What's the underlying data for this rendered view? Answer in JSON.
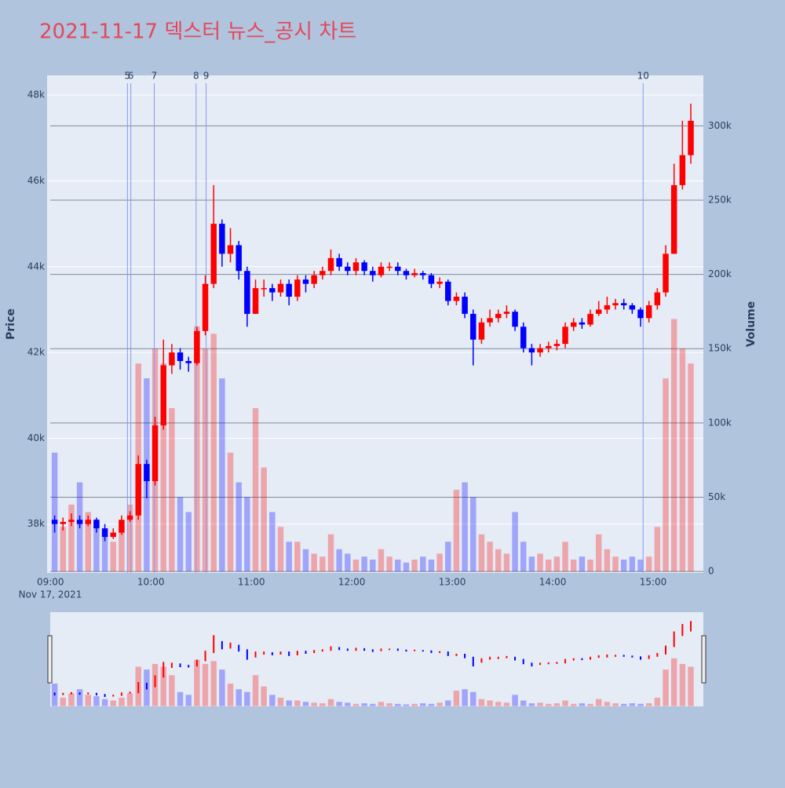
{
  "chart_data": {
    "type": "candlestick",
    "title": "2021-11-17 덱스터 뉴스_공시 차트",
    "y_label": "Price",
    "y2_label": "Volume",
    "x_date_label": "Nov 17, 2021",
    "increasing_color": "#ff0000",
    "decreasing_color": "#0000ff",
    "xlim": [
      "08:58",
      "15:30"
    ],
    "xticks": [
      "09:00",
      "10:00",
      "11:00",
      "12:00",
      "13:00",
      "14:00",
      "15:00"
    ],
    "ylim": [
      36860,
      48460
    ],
    "yticks": [
      {
        "value": 38000,
        "label": "38k"
      },
      {
        "value": 40000,
        "label": "40k"
      },
      {
        "value": 42000,
        "label": "42k"
      },
      {
        "value": 44000,
        "label": "44k"
      },
      {
        "value": 46000,
        "label": "46k"
      },
      {
        "value": 48000,
        "label": "48k"
      }
    ],
    "y2lim": [
      -1000,
      334000
    ],
    "y2ticks": [
      0,
      {
        "value": 50000,
        "label": "50k"
      },
      {
        "value": 100000,
        "label": "100k"
      },
      {
        "value": 150000,
        "label": "150k"
      },
      {
        "value": 200000,
        "label": "200k"
      },
      {
        "value": 250000,
        "label": "250k"
      },
      {
        "value": 300000,
        "label": "300k"
      }
    ],
    "markers": [
      {
        "x": "09:46",
        "label": "5"
      },
      {
        "x": "09:48",
        "label": "6"
      },
      {
        "x": "10:02",
        "label": "7"
      },
      {
        "x": "10:27",
        "label": "8"
      },
      {
        "x": "10:33",
        "label": "9"
      },
      {
        "x": "14:54",
        "label": "10"
      }
    ],
    "x": [
      "09:00",
      "09:05",
      "09:10",
      "09:15",
      "09:20",
      "09:25",
      "09:30",
      "09:35",
      "09:40",
      "09:45",
      "09:50",
      "09:55",
      "10:00",
      "10:05",
      "10:10",
      "10:15",
      "10:20",
      "10:25",
      "10:30",
      "10:35",
      "10:40",
      "10:45",
      "10:50",
      "10:55",
      "11:00",
      "11:05",
      "11:10",
      "11:15",
      "11:20",
      "11:25",
      "11:30",
      "11:35",
      "11:40",
      "11:45",
      "11:50",
      "11:55",
      "12:00",
      "12:05",
      "12:10",
      "12:15",
      "12:20",
      "12:25",
      "12:30",
      "12:35",
      "12:40",
      "12:45",
      "12:50",
      "12:55",
      "13:00",
      "13:05",
      "13:10",
      "13:15",
      "13:20",
      "13:25",
      "13:30",
      "13:35",
      "13:40",
      "13:45",
      "13:50",
      "13:55",
      "14:00",
      "14:05",
      "14:10",
      "14:15",
      "14:20",
      "14:25",
      "14:30",
      "14:35",
      "14:40",
      "14:45",
      "14:50",
      "14:55",
      "15:00",
      "15:05",
      "15:10",
      "15:15",
      "15:20"
    ],
    "open": [
      38100,
      38000,
      38050,
      38100,
      38000,
      38100,
      37900,
      37700,
      37800,
      38100,
      38200,
      39400,
      39000,
      40300,
      41700,
      42000,
      41800,
      41750,
      42500,
      43600,
      45000,
      44300,
      44500,
      43900,
      42900,
      43500,
      43500,
      43400,
      43600,
      43300,
      43700,
      43600,
      43800,
      43900,
      44200,
      44000,
      43900,
      44100,
      43900,
      43800,
      44000,
      44000,
      43900,
      43800,
      43850,
      43800,
      43600,
      43650,
      43200,
      43300,
      42900,
      42300,
      42700,
      42800,
      42900,
      42950,
      42600,
      42100,
      42000,
      42100,
      42150,
      42200,
      42600,
      42700,
      42650,
      42900,
      43000,
      43100,
      43150,
      43100,
      43000,
      42800,
      43100,
      43400,
      44300,
      45900,
      46600
    ],
    "high": [
      38200,
      38150,
      38250,
      38200,
      38200,
      38150,
      38000,
      37900,
      38200,
      38300,
      39600,
      39500,
      40500,
      42300,
      42200,
      42100,
      41900,
      42600,
      43800,
      45900,
      45100,
      44900,
      44600,
      44000,
      43700,
      43700,
      43600,
      43700,
      43700,
      43800,
      43800,
      43900,
      44000,
      44400,
      44300,
      44100,
      44200,
      44150,
      44000,
      44100,
      44100,
      44100,
      43950,
      43950,
      43900,
      43850,
      43750,
      43700,
      43400,
      43400,
      43000,
      42800,
      43000,
      43000,
      43100,
      43000,
      42700,
      42200,
      42200,
      42250,
      42300,
      42700,
      42800,
      42800,
      43000,
      43200,
      43300,
      43250,
      43250,
      43150,
      43050,
      43200,
      43500,
      44500,
      46400,
      47400,
      47800
    ],
    "low": [
      37800,
      37850,
      37950,
      37900,
      37950,
      37800,
      37600,
      37650,
      37750,
      38050,
      38100,
      38600,
      38900,
      40200,
      41500,
      41600,
      41550,
      41700,
      42400,
      43500,
      44000,
      44100,
      43700,
      42600,
      42900,
      43300,
      43200,
      43300,
      43100,
      43200,
      43400,
      43500,
      43700,
      43800,
      43900,
      43800,
      43800,
      43800,
      43650,
      43750,
      43900,
      43800,
      43700,
      43750,
      43700,
      43500,
      43500,
      43100,
      43100,
      42800,
      41700,
      42200,
      42600,
      42700,
      42800,
      42500,
      42000,
      41700,
      41900,
      42000,
      42050,
      42100,
      42500,
      42550,
      42600,
      42850,
      42900,
      43000,
      43000,
      42900,
      42600,
      42700,
      43000,
      43300,
      44300,
      45800,
      46400
    ],
    "close": [
      38000,
      38050,
      38100,
      38000,
      38100,
      37900,
      37700,
      37800,
      38100,
      38200,
      39400,
      39000,
      40300,
      41700,
      42000,
      41800,
      41750,
      42500,
      43600,
      45000,
      44300,
      44500,
      43900,
      42900,
      43500,
      43500,
      43400,
      43600,
      43300,
      43700,
      43600,
      43800,
      43900,
      44200,
      44000,
      43900,
      44100,
      43900,
      43800,
      44000,
      44000,
      43900,
      43800,
      43850,
      43800,
      43600,
      43650,
      43200,
      43300,
      42900,
      42300,
      42700,
      42800,
      42900,
      42950,
      42600,
      42100,
      42000,
      42100,
      42150,
      42200,
      42600,
      42700,
      42650,
      42900,
      43000,
      43100,
      43150,
      43100,
      43000,
      42800,
      43100,
      43400,
      44300,
      45900,
      46600,
      47400
    ],
    "volume": [
      80000,
      30000,
      45000,
      60000,
      40000,
      35000,
      25000,
      20000,
      30000,
      45000,
      140000,
      130000,
      150000,
      140000,
      110000,
      50000,
      40000,
      165000,
      150000,
      160000,
      130000,
      80000,
      60000,
      50000,
      110000,
      70000,
      40000,
      30000,
      20000,
      20000,
      15000,
      12000,
      10000,
      25000,
      15000,
      12000,
      8000,
      10000,
      8000,
      15000,
      10000,
      8000,
      6000,
      8000,
      10000,
      8000,
      12000,
      20000,
      55000,
      60000,
      50000,
      25000,
      20000,
      15000,
      12000,
      40000,
      20000,
      10000,
      12000,
      8000,
      10000,
      20000,
      8000,
      10000,
      8000,
      25000,
      15000,
      10000,
      8000,
      10000,
      8000,
      10000,
      30000,
      130000,
      170000,
      150000,
      140000
    ]
  }
}
